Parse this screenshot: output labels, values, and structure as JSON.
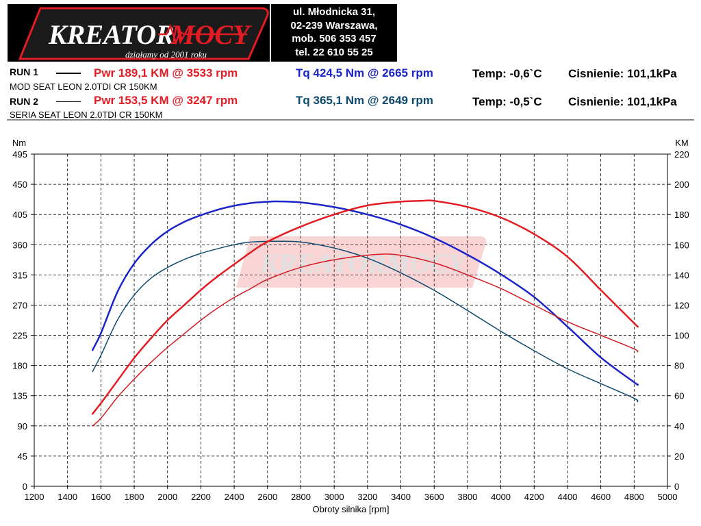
{
  "header": {
    "logo_name": "KREATORMOCY",
    "logo_tagline": "działamy od 2001 roku",
    "contact": [
      "ul. Młodnicka 31,",
      "02-239  Warszawa,",
      "mob.  506 353 457",
      "tel.  22 610 55 25"
    ],
    "run1": {
      "label": "RUN 1",
      "desc": "MOD SEAT LEON 2.0TDI CR 150KM",
      "pwr": "Pwr  189,1 KM @ 3533 rpm",
      "tq": "Tq 424,5 Nm @ 2665 rpm",
      "temp": "Temp: -0,6`C",
      "press": "Cisnienie: 101,1kPa"
    },
    "run2": {
      "label": "RUN 2",
      "desc": "SERIA SEAT LEON 2.0TDI CR 150KM",
      "pwr": "Pwr  153,5 KM @ 3247 rpm",
      "tq": "Tq 365,1 Nm @ 2649 rpm",
      "temp": "Temp: -0,5`C",
      "press": "Cisnienie: 101,1kPa"
    }
  },
  "colors": {
    "power_mod": "#e31b23",
    "power_stock": "#d41a22",
    "torque_mod": "#1a24c8",
    "torque_stock": "#0e4a6e",
    "grid": "#000000"
  },
  "chart_data": {
    "type": "line",
    "xlabel": "Obroty silnika [rpm]",
    "ylabel_left": "Nm",
    "ylabel_right": "KM",
    "xlim": [
      1200,
      5000
    ],
    "ylim_left": [
      0,
      495
    ],
    "ylim_right": [
      0,
      220
    ],
    "x_ticks": [
      1200,
      1400,
      1600,
      1800,
      2000,
      2200,
      2400,
      2600,
      2800,
      3000,
      3200,
      3400,
      3600,
      3800,
      4000,
      4200,
      4400,
      4600,
      4800,
      5000
    ],
    "y_ticks_left": [
      0,
      45,
      90,
      135,
      180,
      225,
      270,
      315,
      360,
      405,
      450,
      495
    ],
    "y_ticks_right": [
      0,
      20,
      40,
      60,
      80,
      100,
      120,
      140,
      160,
      180,
      200,
      220
    ],
    "grid": true,
    "series": [
      {
        "name": "Tq RUN 1",
        "axis": "left",
        "color": "#1a24c8",
        "width": 2.5,
        "x": [
          1550,
          1600,
          1700,
          1800,
          1900,
          2000,
          2100,
          2200,
          2300,
          2400,
          2500,
          2600,
          2665,
          2800,
          3000,
          3200,
          3400,
          3600,
          3800,
          4000,
          4200,
          4400,
          4600,
          4800,
          4820
        ],
        "y": [
          203,
          228,
          290,
          332,
          360,
          380,
          394,
          404,
          412,
          418,
          422,
          424,
          424.5,
          423,
          416,
          405,
          390,
          370,
          345,
          316,
          282,
          238,
          192,
          155,
          152
        ]
      },
      {
        "name": "Tq RUN 2",
        "axis": "left",
        "color": "#0e4a6e",
        "width": 1.5,
        "x": [
          1550,
          1600,
          1700,
          1800,
          1900,
          2000,
          2100,
          2200,
          2300,
          2400,
          2500,
          2649,
          2800,
          3000,
          3200,
          3400,
          3600,
          3800,
          4000,
          4200,
          4400,
          4600,
          4800,
          4820
        ],
        "y": [
          171,
          195,
          248,
          285,
          310,
          326,
          338,
          347,
          354,
          360,
          364,
          365.1,
          364,
          355,
          340,
          318,
          292,
          262,
          231,
          202,
          175,
          153,
          131,
          126
        ]
      },
      {
        "name": "Pwr RUN 1",
        "axis": "right",
        "color": "#e31b23",
        "width": 2.5,
        "x": [
          1550,
          1600,
          1700,
          1800,
          1900,
          2000,
          2100,
          2200,
          2300,
          2400,
          2500,
          2600,
          2800,
          3000,
          3200,
          3400,
          3533,
          3600,
          3800,
          4000,
          4200,
          4400,
          4600,
          4800,
          4820
        ],
        "y": [
          48,
          55,
          70,
          85,
          98,
          110,
          120,
          130,
          139,
          147,
          155,
          162,
          172,
          180,
          186,
          188.5,
          189.1,
          189,
          185,
          178,
          167,
          152,
          130,
          108,
          106
        ]
      },
      {
        "name": "Pwr RUN 2",
        "axis": "right",
        "color": "#d41a22",
        "width": 1.5,
        "x": [
          1550,
          1600,
          1700,
          1800,
          1900,
          2000,
          2100,
          2200,
          2300,
          2400,
          2500,
          2600,
          2800,
          3000,
          3247,
          3400,
          3600,
          3800,
          4000,
          4200,
          4400,
          4600,
          4800,
          4820
        ],
        "y": [
          40,
          45,
          59,
          71,
          82,
          92,
          101,
          110,
          118,
          125,
          131,
          137,
          145,
          150,
          153.5,
          153,
          148,
          140,
          131,
          120,
          109,
          100,
          91,
          89
        ]
      }
    ]
  }
}
